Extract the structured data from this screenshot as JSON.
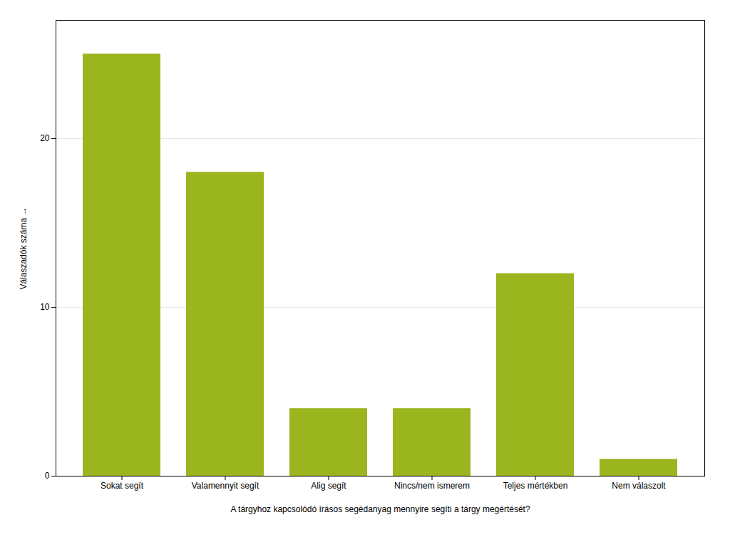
{
  "chart_data": {
    "type": "bar",
    "categories": [
      "Sokat segít",
      "Valamennyit segít",
      "Alig segít",
      "Nincs/nem ismerem",
      "Teljes mértékben",
      "Nem válaszolt"
    ],
    "values": [
      25,
      18,
      4,
      4,
      12,
      1
    ],
    "color": "#9ab51e",
    "xlabel": "A tárgyhoz kapcsolódó írásos segédanyag mennyire segíti a tárgy megértését?",
    "ylabel": "Válaszadók száma",
    "ylim": [
      0,
      27
    ],
    "yticks": [
      0,
      10,
      20
    ],
    "grid": true
  }
}
